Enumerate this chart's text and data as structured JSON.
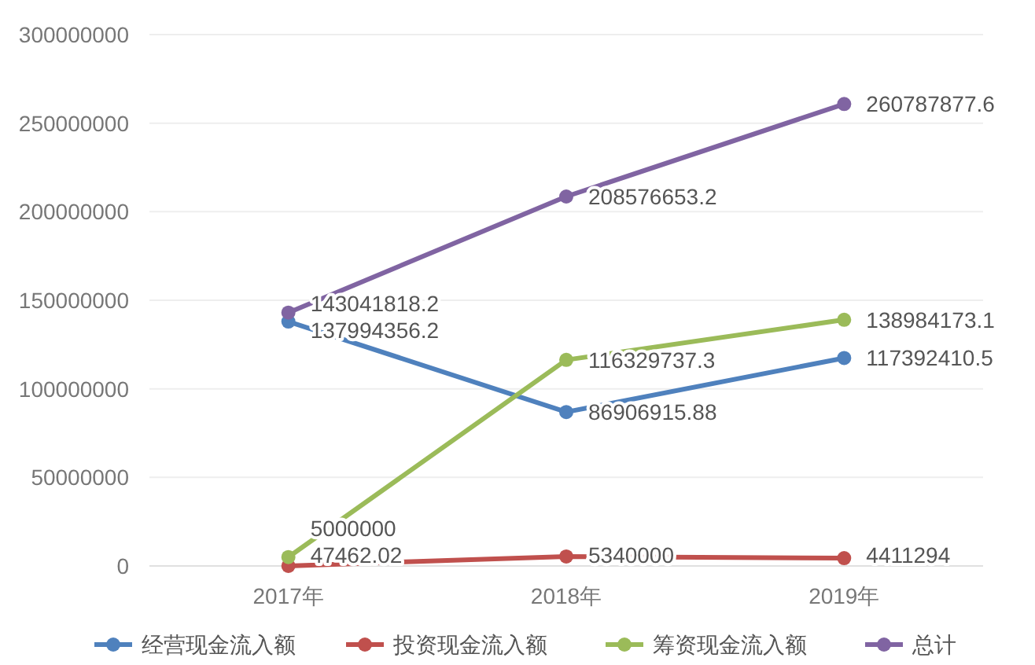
{
  "chart_data": {
    "type": "line",
    "categories": [
      "2017年",
      "2018年",
      "2019年"
    ],
    "series": [
      {
        "name": "经营现金流入额",
        "color": "#4f81bd",
        "values": [
          137994356.2,
          86906915.88,
          117392410.5
        ]
      },
      {
        "name": "投资现金流入额",
        "color": "#c0504d",
        "values": [
          47462.02,
          5340000,
          4411294
        ]
      },
      {
        "name": "筹资现金流入额",
        "color": "#9bbb59",
        "values": [
          5000000,
          116329737.3,
          138984173.1
        ]
      },
      {
        "name": "总计",
        "color": "#8064a2",
        "values": [
          143041818.2,
          208576653.2,
          260787877.6
        ]
      }
    ],
    "ylim": [
      0,
      300000000
    ],
    "yticks": [
      0,
      50000000,
      100000000,
      150000000,
      200000000,
      250000000,
      300000000
    ],
    "grid": "y",
    "legend": "bottom",
    "marker": "circle",
    "data_labels": true
  }
}
